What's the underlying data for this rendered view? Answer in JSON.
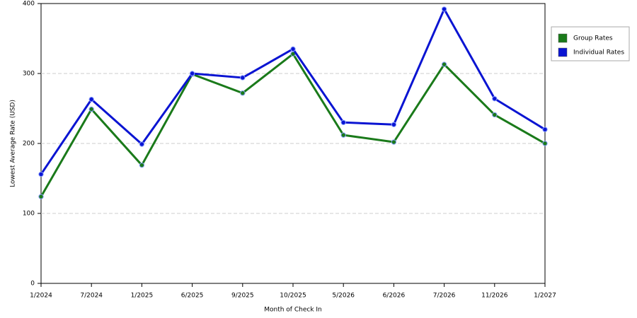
{
  "chart_data": {
    "type": "line",
    "x_label": "Month of Check In",
    "y_label": "Lowest Average Rate (USD)",
    "categories": [
      "1/2024",
      "7/2024",
      "1/2025",
      "6/2025",
      "9/2025",
      "10/2025",
      "5/2026",
      "6/2026",
      "7/2026",
      "11/2026",
      "1/2027"
    ],
    "series": [
      {
        "name": "Group Rates",
        "color": "#1a7a1a",
        "values": [
          124,
          249,
          169,
          299,
          272,
          328,
          212,
          202,
          313,
          241,
          200
        ]
      },
      {
        "name": "Individual Rates",
        "color": "#0a14d2",
        "values": [
          156,
          263,
          199,
          300,
          294,
          335,
          230,
          227,
          392,
          264,
          220
        ]
      }
    ],
    "ylim": [
      0,
      400
    ],
    "yticks": [
      0,
      100,
      200,
      300,
      400
    ],
    "grid": true,
    "legend": "right"
  }
}
